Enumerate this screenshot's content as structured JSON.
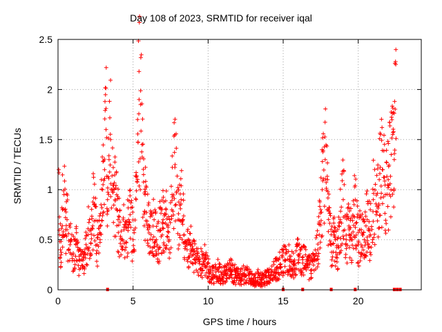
{
  "chart_data": {
    "type": "scatter",
    "title": "Day 108 of 2023, SRMTID for receiver iqal",
    "xlabel": "GPS time / hours",
    "ylabel": "SRMTID / TECUs",
    "xlim": [
      0,
      24.2
    ],
    "ylim": [
      0,
      2.5
    ],
    "xticks": [
      0,
      5,
      10,
      15,
      20
    ],
    "yticks": [
      0,
      0.5,
      1,
      1.5,
      2,
      2.5
    ],
    "grid": true,
    "marker": "+",
    "color": "#ff0000",
    "series": [
      {
        "name": "SRMTID",
        "x": [
          0.05,
          0.1,
          0.2,
          0.3,
          0.4,
          0.5,
          0.6,
          0.7,
          0.8,
          0.9,
          1.0,
          1.2,
          1.4,
          1.6,
          1.8,
          2.0,
          2.2,
          2.4,
          2.6,
          2.8,
          3.0,
          3.1,
          3.2,
          3.3,
          3.4,
          3.5,
          3.6,
          3.8,
          4.0,
          4.2,
          4.4,
          4.6,
          4.8,
          5.0,
          5.2,
          5.3,
          5.4,
          5.5,
          5.6,
          5.7,
          5.8,
          6.0,
          6.2,
          6.4,
          6.6,
          6.8,
          7.0,
          7.2,
          7.4,
          7.6,
          7.8,
          8.0,
          8.2,
          8.4,
          8.6,
          8.8,
          9.0,
          9.2,
          9.4,
          9.6,
          9.8,
          10.0,
          10.3,
          10.6,
          10.9,
          11.2,
          11.5,
          11.8,
          12.1,
          12.4,
          12.7,
          13.0,
          13.3,
          13.6,
          13.9,
          14.2,
          14.5,
          14.8,
          15.1,
          15.4,
          15.7,
          16.0,
          16.3,
          16.6,
          16.9,
          17.1,
          17.3,
          17.4,
          17.5,
          17.6,
          17.8,
          18.0,
          18.2,
          18.4,
          18.6,
          18.8,
          19.0,
          19.2,
          19.4,
          19.6,
          19.8,
          20.0,
          20.2,
          20.4,
          20.6,
          20.8,
          21.0,
          21.2,
          21.4,
          21.6,
          21.8,
          22.0,
          22.2,
          22.3,
          22.4,
          22.5
        ],
        "y": [
          1.2,
          0.55,
          0.35,
          0.8,
          0.95,
          0.6,
          0.7,
          0.4,
          0.45,
          0.5,
          0.35,
          0.45,
          0.3,
          0.3,
          0.35,
          0.55,
          0.6,
          0.85,
          0.45,
          0.5,
          1.05,
          1.2,
          1.6,
          0.9,
          1.3,
          1.5,
          1.0,
          0.9,
          0.7,
          0.5,
          0.6,
          0.65,
          0.75,
          0.5,
          0.9,
          1.7,
          1.9,
          1.85,
          1.45,
          1.15,
          0.95,
          0.6,
          0.55,
          0.7,
          0.45,
          0.6,
          0.7,
          0.8,
          0.5,
          0.95,
          1.25,
          0.7,
          0.9,
          0.55,
          0.4,
          0.45,
          0.35,
          0.3,
          0.3,
          0.25,
          0.3,
          0.2,
          0.15,
          0.2,
          0.15,
          0.15,
          0.2,
          0.15,
          0.12,
          0.15,
          0.15,
          0.1,
          0.12,
          0.1,
          0.12,
          0.15,
          0.2,
          0.25,
          0.3,
          0.3,
          0.25,
          0.35,
          0.3,
          0.25,
          0.2,
          0.3,
          0.4,
          0.55,
          0.8,
          1.0,
          1.3,
          0.8,
          0.45,
          0.55,
          0.35,
          0.7,
          0.9,
          0.5,
          0.6,
          0.5,
          0.9,
          0.45,
          0.6,
          0.5,
          0.7,
          0.55,
          0.9,
          0.75,
          1.1,
          1.2,
          0.95,
          1.1,
          1.35,
          1.55,
          1.3,
          2.25
        ],
        "noise_seed": 108
      }
    ],
    "bottom_markers_x": [
      3.3,
      15.0,
      16.3,
      18.2,
      19.8,
      22.4,
      22.6,
      22.8
    ]
  }
}
